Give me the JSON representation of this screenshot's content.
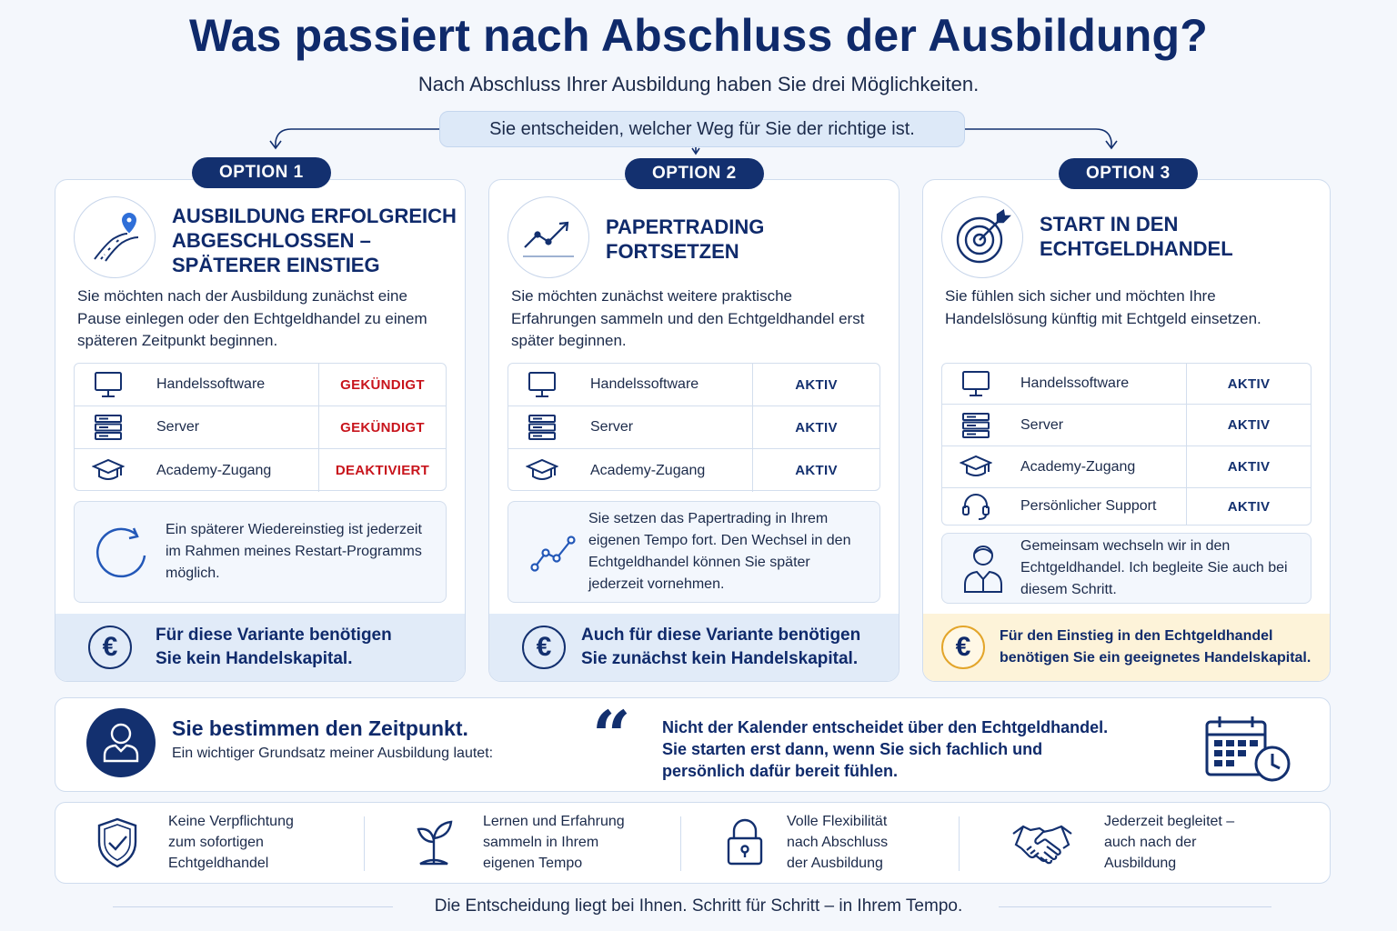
{
  "title": "Was passiert nach Abschluss der Ausbildung?",
  "subtitle": "Nach Abschluss Ihrer Ausbildung haben Sie drei Möglichkeiten.",
  "decision": "Sie entscheiden, welcher Weg für Sie der richtige ist.",
  "colors": {
    "navy": "#13306f",
    "heading": "#0f2a6b",
    "red_status": "#c8141c",
    "active_status": "#13306f",
    "gold": "#e3a52a"
  },
  "options": [
    {
      "badge": "OPTION 1",
      "icon": "road-pin-icon",
      "title_lines": [
        "AUSBILDUNG ERFOLGREICH",
        "ABGESCHLOSSEN –",
        "SPÄTERER EINSTIEG"
      ],
      "description": "Sie möchten nach der Ausbildung zunächst eine Pause einlegen oder den Echtgeldhandel zu einem späteren Zeitpunkt beginnen.",
      "rows": [
        {
          "icon": "monitor-icon",
          "label": "Handelssoftware",
          "status": "GEKÜNDIGT"
        },
        {
          "icon": "server-icon",
          "label": "Server",
          "status": "GEKÜNDIGT"
        },
        {
          "icon": "graduation-cap-icon",
          "label": "Academy-Zugang",
          "status": "DEAKTIVIERT"
        }
      ],
      "note_icon": "restart-icon",
      "note": "Ein späterer Wiedereinstieg ist jederzeit im Rahmen meines Restart-Programms möglich.",
      "footer_icon": "euro-icon",
      "footer_lines": [
        "Für diese Variante benötigen",
        "Sie kein Handelskapital."
      ]
    },
    {
      "badge": "OPTION 2",
      "icon": "trend-chart-icon",
      "title_lines": [
        "PAPERTRADING",
        "FORTSETZEN"
      ],
      "description": "Sie möchten zunächst weitere praktische Erfahrungen sammeln und den Echtgeldhandel erst später beginnen.",
      "rows": [
        {
          "icon": "monitor-icon",
          "label": "Handelssoftware",
          "status": "AKTIV"
        },
        {
          "icon": "server-icon",
          "label": "Server",
          "status": "AKTIV"
        },
        {
          "icon": "graduation-cap-icon",
          "label": "Academy-Zugang",
          "status": "AKTIV"
        }
      ],
      "note_icon": "line-chart-icon",
      "note": "Sie setzen das Papertrading in Ihrem eigenen Tempo fort. Den Wechsel in den Echtgeldhandel können Sie später jederzeit vornehmen.",
      "footer_icon": "euro-icon",
      "footer_lines": [
        "Auch für diese Variante benötigen",
        "Sie zunächst kein Handelskapital."
      ]
    },
    {
      "badge": "OPTION 3",
      "icon": "target-icon",
      "title_lines": [
        "START IN DEN",
        "ECHTGELDHANDEL"
      ],
      "description": "Sie fühlen sich sicher und möchten Ihre Handelslösung künftig mit Echtgeld einsetzen.",
      "rows": [
        {
          "icon": "monitor-icon",
          "label": "Handelssoftware",
          "status": "AKTIV"
        },
        {
          "icon": "server-icon",
          "label": "Server",
          "status": "AKTIV"
        },
        {
          "icon": "graduation-cap-icon",
          "label": "Academy-Zugang",
          "status": "AKTIV"
        },
        {
          "icon": "headset-icon",
          "label": "Persönlicher Support",
          "status": "AKTIV"
        }
      ],
      "note_icon": "coach-icon",
      "note": "Gemeinsam wechseln wir in den Echtgeldhandel. Ich begleite Sie auch bei diesem Schritt.",
      "footer_icon": "euro-icon",
      "footer_lines": [
        "Für den Einstieg in den Echtgeldhandel",
        "benötigen Sie ein geeignetes Handelskapital."
      ]
    }
  ],
  "banner": {
    "icon": "user-icon",
    "heading": "Sie bestimmen den Zeitpunkt.",
    "sub": "Ein wichtiger Grundsatz meiner Ausbildung lautet:",
    "quote_mark": "“",
    "quote_lines": [
      "Nicht der Kalender entscheidet über den Echtgeldhandel.",
      "Sie starten erst dann, wenn Sie sich fachlich und",
      "persönlich dafür bereit fühlen."
    ],
    "calendar_icon": "calendar-clock-icon"
  },
  "features": [
    {
      "icon": "shield-check-icon",
      "lines": [
        "Keine Verpflichtung",
        "zum sofortigen",
        "Echtgeldhandel"
      ]
    },
    {
      "icon": "seedling-icon",
      "lines": [
        "Lernen und Erfahrung",
        "sammeln in Ihrem",
        "eigenen Tempo"
      ]
    },
    {
      "icon": "padlock-icon",
      "lines": [
        "Volle Flexibilität",
        "nach Abschluss",
        "der Ausbildung"
      ]
    },
    {
      "icon": "handshake-icon",
      "lines": [
        "Jederzeit begleitet –",
        "auch nach der",
        "Ausbildung"
      ]
    }
  ],
  "closing": "Die Entscheidung liegt bei Ihnen. Schritt für Schritt – in Ihrem Tempo."
}
